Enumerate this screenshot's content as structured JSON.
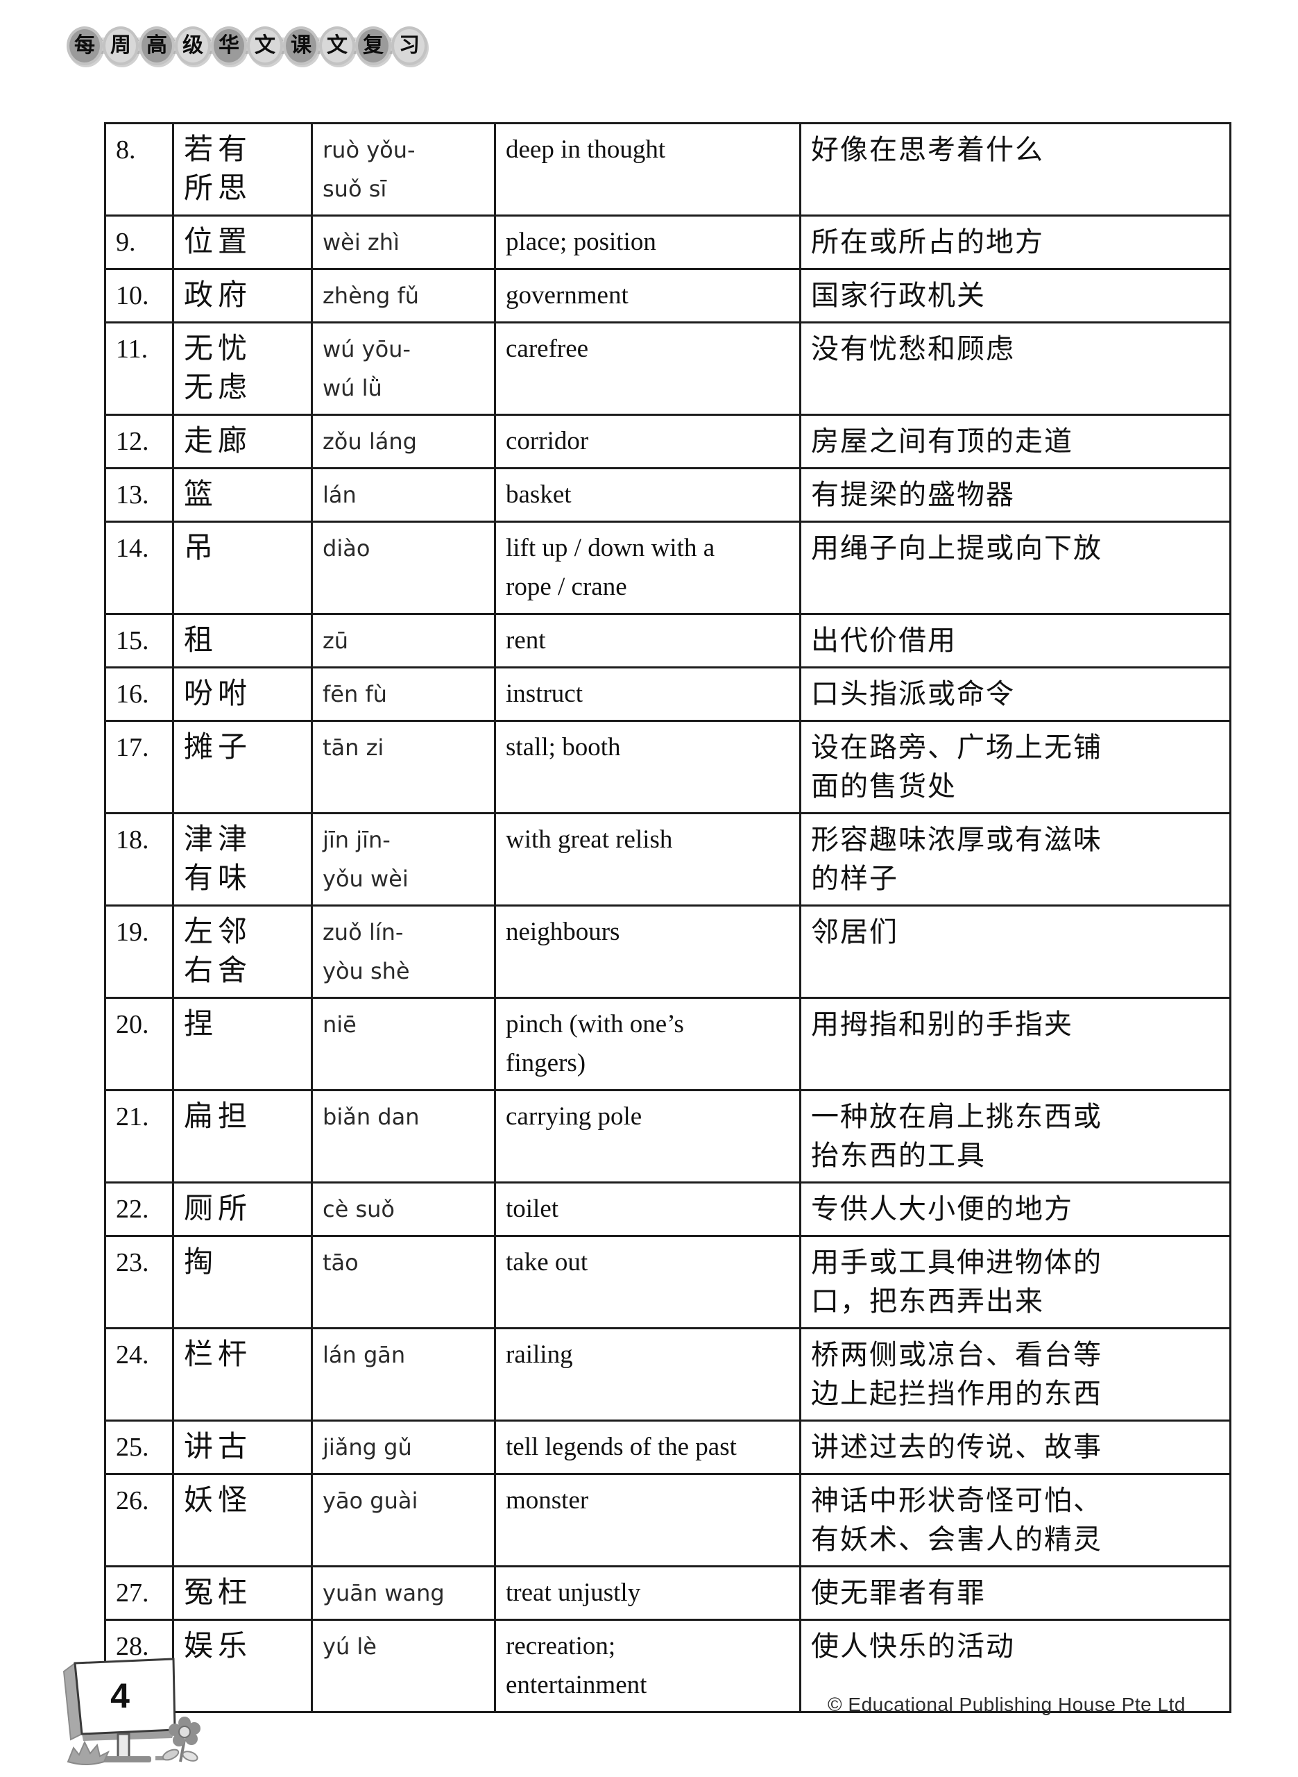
{
  "header": {
    "title_chars": [
      "每",
      "周",
      "高",
      "级",
      "华",
      "文",
      "课",
      "文",
      "复",
      "习"
    ]
  },
  "table": {
    "rows": [
      {
        "num": "8.",
        "word": [
          "若有",
          "所思"
        ],
        "pinyin": [
          "ruò yǒu-",
          "suǒ sī"
        ],
        "english": [
          "deep in thought"
        ],
        "meaning": [
          "好像在思考着什么"
        ]
      },
      {
        "num": "9.",
        "word": [
          "位置"
        ],
        "pinyin": [
          "wèi zhì"
        ],
        "english": [
          "place; position"
        ],
        "meaning": [
          "所在或所占的地方"
        ]
      },
      {
        "num": "10.",
        "word": [
          "政府"
        ],
        "pinyin": [
          "zhèng fǔ"
        ],
        "english": [
          "government"
        ],
        "meaning": [
          "国家行政机关"
        ]
      },
      {
        "num": "11.",
        "word": [
          "无忧",
          "无虑"
        ],
        "pinyin": [
          "wú yōu-",
          "wú lǜ"
        ],
        "english": [
          "carefree"
        ],
        "meaning": [
          "没有忧愁和顾虑"
        ]
      },
      {
        "num": "12.",
        "word": [
          "走廊"
        ],
        "pinyin": [
          "zǒu láng"
        ],
        "english": [
          "corridor"
        ],
        "meaning": [
          "房屋之间有顶的走道"
        ]
      },
      {
        "num": "13.",
        "word": [
          "篮"
        ],
        "pinyin": [
          "lán"
        ],
        "english": [
          "basket"
        ],
        "meaning": [
          "有提梁的盛物器"
        ]
      },
      {
        "num": "14.",
        "word": [
          "吊"
        ],
        "pinyin": [
          "diào"
        ],
        "english": [
          "lift up / down with a",
          "rope / crane"
        ],
        "meaning": [
          "用绳子向上提或向下放"
        ]
      },
      {
        "num": "15.",
        "word": [
          "租"
        ],
        "pinyin": [
          "zū"
        ],
        "english": [
          "rent"
        ],
        "meaning": [
          "出代价借用"
        ]
      },
      {
        "num": "16.",
        "word": [
          "吩咐"
        ],
        "pinyin": [
          "fēn fù"
        ],
        "english": [
          "instruct"
        ],
        "meaning": [
          "口头指派或命令"
        ]
      },
      {
        "num": "17.",
        "word": [
          "摊子"
        ],
        "pinyin": [
          "tān zi"
        ],
        "english": [
          "stall; booth"
        ],
        "meaning": [
          "设在路旁、广场上无铺",
          "面的售货处"
        ]
      },
      {
        "num": "18.",
        "word": [
          "津津",
          "有味"
        ],
        "pinyin": [
          "jīn jīn-",
          "yǒu wèi"
        ],
        "english": [
          "with great relish"
        ],
        "meaning": [
          "形容趣味浓厚或有滋味",
          "的样子"
        ]
      },
      {
        "num": "19.",
        "word": [
          "左邻",
          "右舍"
        ],
        "pinyin": [
          "zuǒ lín-",
          "yòu shè"
        ],
        "english": [
          "neighbours"
        ],
        "meaning": [
          "邻居们"
        ]
      },
      {
        "num": "20.",
        "word": [
          "捏"
        ],
        "pinyin": [
          "niē"
        ],
        "english": [
          "pinch (with one’s",
          "fingers)"
        ],
        "meaning": [
          "用拇指和别的手指夹"
        ]
      },
      {
        "num": "21.",
        "word": [
          "扁担"
        ],
        "pinyin": [
          "biǎn dan"
        ],
        "english": [
          "carrying pole"
        ],
        "meaning": [
          "一种放在肩上挑东西或",
          "抬东西的工具"
        ]
      },
      {
        "num": "22.",
        "word": [
          "厕所"
        ],
        "pinyin": [
          "cè suǒ"
        ],
        "english": [
          "toilet"
        ],
        "meaning": [
          "专供人大小便的地方"
        ]
      },
      {
        "num": "23.",
        "word": [
          "掏"
        ],
        "pinyin": [
          "tāo"
        ],
        "english": [
          "take out"
        ],
        "meaning": [
          "用手或工具伸进物体的",
          "口，把东西弄出来"
        ]
      },
      {
        "num": "24.",
        "word": [
          "栏杆"
        ],
        "pinyin": [
          "lán gān"
        ],
        "english": [
          "railing"
        ],
        "meaning": [
          "桥两侧或凉台、看台等",
          "边上起拦挡作用的东西"
        ]
      },
      {
        "num": "25.",
        "word": [
          "讲古"
        ],
        "pinyin": [
          "jiǎng gǔ"
        ],
        "english": [
          "tell legends of the past"
        ],
        "meaning": [
          "讲述过去的传说、故事"
        ]
      },
      {
        "num": "26.",
        "word": [
          "妖怪"
        ],
        "pinyin": [
          "yāo guài"
        ],
        "english": [
          "monster"
        ],
        "meaning": [
          "神话中形状奇怪可怕、",
          "有妖术、会害人的精灵"
        ]
      },
      {
        "num": "27.",
        "word": [
          "冤枉"
        ],
        "pinyin": [
          "yuān wang"
        ],
        "english": [
          "treat unjustly"
        ],
        "meaning": [
          "使无罪者有罪"
        ]
      },
      {
        "num": "28.",
        "word": [
          "娱乐"
        ],
        "pinyin": [
          "yú lè"
        ],
        "english": [
          "recreation;",
          "entertainment"
        ],
        "meaning": [
          "使人快乐的活动"
        ]
      }
    ]
  },
  "footer": {
    "page_number": "4",
    "copyright": "© Educational Publishing House Pte Ltd"
  },
  "colors": {
    "circle_dark": "#9b9b9b",
    "circle_light": "#d8d8d8",
    "table_border": "#1c1c1c",
    "text": "#111111"
  }
}
